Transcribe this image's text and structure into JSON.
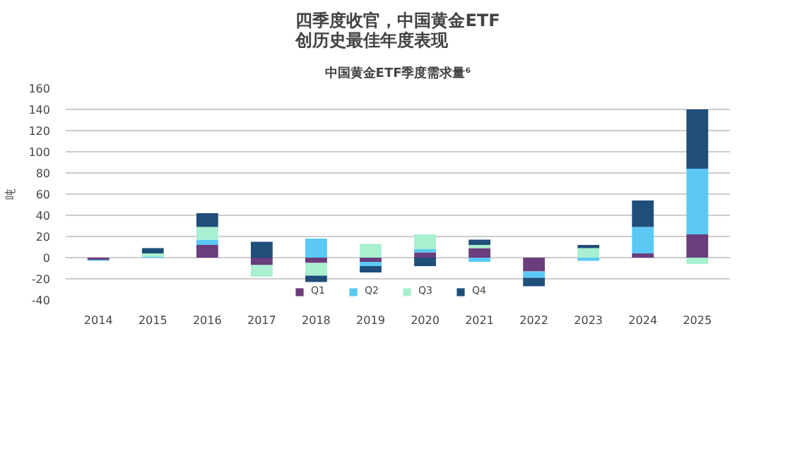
{
  "chart_data": {
    "type": "bar",
    "stacked": true,
    "title": "四季度收官，中国黄金ETF\n创历史最佳年度表现",
    "subtitle": "中国黄金ETF季度需求量⁶",
    "ylabel": "吨",
    "categories": [
      "2014",
      "2015",
      "2016",
      "2017",
      "2018",
      "2019",
      "2020",
      "2021",
      "2022",
      "2023",
      "2024",
      "2025"
    ],
    "series": [
      {
        "name": "Q1",
        "color": "#6a3d7c",
        "values": [
          -2,
          0,
          12,
          -7,
          -5,
          -4,
          5,
          9,
          -13,
          0,
          4,
          22
        ]
      },
      {
        "name": "Q2",
        "color": "#5bc8f5",
        "values": [
          -1,
          1,
          5,
          0,
          18,
          -4,
          3,
          -4,
          -6,
          -3,
          25,
          62
        ]
      },
      {
        "name": "Q3",
        "color": "#a8f0d0",
        "values": [
          0,
          3,
          12,
          -11,
          -12,
          13,
          14,
          3,
          0,
          9,
          0,
          -6
        ]
      },
      {
        "name": "Q4",
        "color": "#1f4e79",
        "values": [
          0,
          5,
          13,
          15,
          -6,
          -6,
          -8,
          5,
          -8,
          3,
          25,
          56
        ]
      }
    ],
    "ylim": [
      -40,
      160
    ],
    "yticks": [
      -40,
      -20,
      0,
      20,
      40,
      60,
      80,
      100,
      120,
      140,
      160
    ],
    "grid": "y",
    "legend": "bottom"
  }
}
